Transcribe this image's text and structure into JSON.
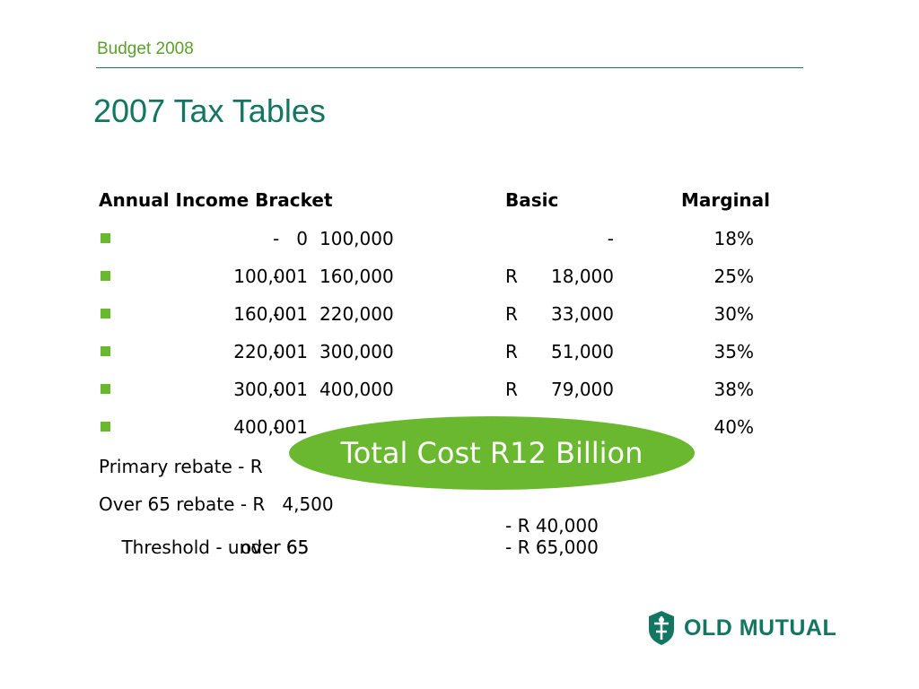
{
  "header": {
    "text": "Budget 2008"
  },
  "title": "2007 Tax Tables",
  "table": {
    "headers": {
      "bracket": "Annual Income Bracket",
      "basic": "Basic",
      "marginal": "Marginal"
    },
    "rows": [
      {
        "from": "0",
        "dash": "-",
        "to": "100,000",
        "r": "",
        "basic": "-",
        "marginal": "18%"
      },
      {
        "from": "100,001",
        "dash": "-",
        "to": "160,000",
        "r": "R",
        "basic": "18,000",
        "marginal": "25%"
      },
      {
        "from": "160,001",
        "dash": "-",
        "to": "220,000",
        "r": "R",
        "basic": "33,000",
        "marginal": "30%"
      },
      {
        "from": "220,001",
        "dash": "-",
        "to": "300,000",
        "r": "R",
        "basic": "51,000",
        "marginal": "35%"
      },
      {
        "from": "300,001",
        "dash": "-",
        "to": "400,000",
        "r": "R",
        "basic": "79,000",
        "marginal": "38%"
      },
      {
        "from": "400,001",
        "dash": "-",
        "to": "",
        "r": "",
        "basic": "",
        "marginal": "40%"
      }
    ]
  },
  "notes": {
    "primary_rebate": "Primary rebate - R   ",
    "over65_rebate": "Over 65 rebate - R   4,500",
    "threshold_label": "Threshold - under 65",
    "threshold_under65": "- R 40,000",
    "threshold_over65_label": "over 65",
    "threshold_over65": "- R 65,000"
  },
  "callout": "Total Cost R12 Billion",
  "logo": {
    "text": "OLD MUTUAL"
  },
  "colors": {
    "green": "#6ab82f",
    "teal": "#137660"
  }
}
